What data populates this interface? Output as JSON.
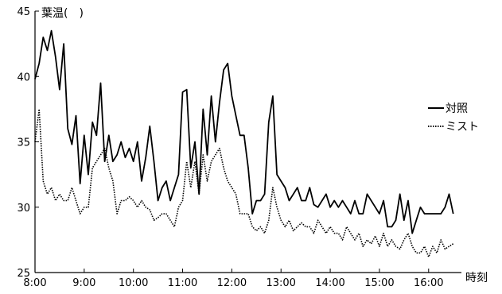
{
  "chart_data": {
    "type": "line",
    "ylabel": "葉温(　)",
    "xlabel": "時刻",
    "ylim": [
      25,
      45
    ],
    "yticks": [
      25,
      30,
      35,
      40,
      45
    ],
    "xlim": [
      "8:00",
      "16:40"
    ],
    "xticks": [
      "8:00",
      "9:00",
      "10:00",
      "11:00",
      "12:00",
      "13:00",
      "14:00",
      "15:00",
      "16:00"
    ],
    "grid": false,
    "legend": "right",
    "series": [
      {
        "name": "対照",
        "style": "solid",
        "color": "#000000",
        "x": [
          "8:00",
          "8:05",
          "8:10",
          "8:15",
          "8:20",
          "8:25",
          "8:30",
          "8:35",
          "8:40",
          "8:45",
          "8:50",
          "8:55",
          "9:00",
          "9:05",
          "9:10",
          "9:15",
          "9:20",
          "9:25",
          "9:30",
          "9:35",
          "9:40",
          "9:45",
          "9:50",
          "9:55",
          "10:00",
          "10:05",
          "10:10",
          "10:15",
          "10:20",
          "10:25",
          "10:30",
          "10:35",
          "10:40",
          "10:45",
          "10:50",
          "10:55",
          "11:00",
          "11:05",
          "11:10",
          "11:15",
          "11:20",
          "11:25",
          "11:30",
          "11:35",
          "11:40",
          "11:45",
          "11:50",
          "11:55",
          "12:00",
          "12:05",
          "12:10",
          "12:15",
          "12:20",
          "12:25",
          "12:30",
          "12:35",
          "12:40",
          "12:45",
          "12:50",
          "12:55",
          "13:00",
          "13:05",
          "13:10",
          "13:15",
          "13:20",
          "13:25",
          "13:30",
          "13:35",
          "13:40",
          "13:45",
          "13:50",
          "13:55",
          "14:00",
          "14:05",
          "14:10",
          "14:15",
          "14:20",
          "14:25",
          "14:30",
          "14:35",
          "14:40",
          "14:45",
          "14:50",
          "14:55",
          "15:00",
          "15:05",
          "15:10",
          "15:15",
          "15:20",
          "15:25",
          "15:30",
          "15:35",
          "15:40",
          "15:45",
          "15:50",
          "15:55",
          "16:00",
          "16:05",
          "16:10",
          "16:15",
          "16:20",
          "16:25",
          "16:30"
        ],
        "values": [
          39.8,
          41.0,
          43.0,
          42.0,
          43.5,
          41.5,
          39.0,
          42.5,
          36.0,
          34.8,
          37.0,
          31.8,
          35.5,
          32.5,
          36.5,
          35.5,
          39.5,
          33.5,
          35.5,
          33.5,
          34.0,
          35.0,
          33.8,
          34.5,
          33.5,
          35.0,
          32.0,
          33.8,
          36.2,
          33.5,
          30.5,
          31.5,
          32.0,
          30.5,
          31.5,
          32.5,
          38.8,
          39.0,
          33.0,
          35.0,
          31.0,
          37.5,
          34.0,
          38.5,
          35.0,
          38.0,
          40.5,
          41.0,
          38.5,
          37.0,
          35.5,
          35.5,
          33.0,
          29.5,
          30.5,
          30.5,
          31.0,
          36.5,
          38.5,
          32.5,
          32.0,
          31.5,
          30.5,
          31.0,
          31.5,
          30.5,
          30.5,
          31.5,
          30.2,
          30.0,
          30.5,
          31.0,
          30.0,
          30.5,
          30.0,
          30.5,
          30.0,
          29.5,
          30.5,
          29.5,
          29.5,
          31.0,
          30.5,
          30.0,
          29.5,
          30.5,
          28.5,
          28.5,
          29.0,
          31.0,
          29.0,
          30.5,
          28.0,
          29.0,
          30.0,
          29.5,
          29.5,
          29.5,
          29.5,
          29.5,
          30.0,
          31.0,
          29.5
        ]
      },
      {
        "name": "ミスト",
        "style": "dotted",
        "color": "#000000",
        "x": [
          "8:00",
          "8:05",
          "8:10",
          "8:15",
          "8:20",
          "8:25",
          "8:30",
          "8:35",
          "8:40",
          "8:45",
          "8:50",
          "8:55",
          "9:00",
          "9:05",
          "9:10",
          "9:15",
          "9:20",
          "9:25",
          "9:30",
          "9:35",
          "9:40",
          "9:45",
          "9:50",
          "9:55",
          "10:00",
          "10:05",
          "10:10",
          "10:15",
          "10:20",
          "10:25",
          "10:30",
          "10:35",
          "10:40",
          "10:45",
          "10:50",
          "10:55",
          "11:00",
          "11:05",
          "11:10",
          "11:15",
          "11:20",
          "11:25",
          "11:30",
          "11:35",
          "11:40",
          "11:45",
          "11:50",
          "11:55",
          "12:00",
          "12:05",
          "12:10",
          "12:15",
          "12:20",
          "12:25",
          "12:30",
          "12:35",
          "12:40",
          "12:45",
          "12:50",
          "12:55",
          "13:00",
          "13:05",
          "13:10",
          "13:15",
          "13:20",
          "13:25",
          "13:30",
          "13:35",
          "13:40",
          "13:45",
          "13:50",
          "13:55",
          "14:00",
          "14:05",
          "14:10",
          "14:15",
          "14:20",
          "14:25",
          "14:30",
          "14:35",
          "14:40",
          "14:45",
          "14:50",
          "14:55",
          "15:00",
          "15:05",
          "15:10",
          "15:15",
          "15:20",
          "15:25",
          "15:30",
          "15:35",
          "15:40",
          "15:45",
          "15:50",
          "15:55",
          "16:00",
          "16:05",
          "16:10",
          "16:15",
          "16:20",
          "16:25",
          "16:30"
        ],
        "values": [
          35.0,
          37.5,
          32.0,
          31.0,
          31.5,
          30.5,
          31.0,
          30.5,
          30.5,
          31.5,
          30.5,
          29.5,
          30.0,
          30.0,
          33.0,
          33.5,
          34.0,
          34.5,
          33.0,
          32.0,
          29.5,
          30.5,
          30.5,
          30.8,
          30.5,
          30.0,
          30.5,
          30.0,
          29.8,
          29.0,
          29.2,
          29.5,
          29.5,
          29.0,
          28.5,
          30.0,
          30.5,
          33.5,
          31.5,
          33.5,
          31.0,
          34.0,
          32.0,
          33.5,
          34.0,
          34.5,
          33.0,
          32.0,
          31.5,
          31.0,
          29.5,
          29.5,
          29.5,
          28.5,
          28.2,
          28.5,
          28.0,
          29.0,
          31.5,
          30.0,
          29.0,
          28.5,
          29.0,
          28.2,
          28.5,
          28.8,
          28.5,
          28.5,
          28.0,
          29.0,
          28.5,
          28.0,
          28.5,
          28.0,
          28.0,
          27.5,
          28.5,
          28.0,
          27.5,
          28.0,
          27.0,
          27.5,
          27.2,
          27.8,
          27.0,
          28.0,
          27.0,
          27.5,
          27.0,
          26.8,
          27.5,
          28.0,
          27.0,
          26.5,
          26.5,
          27.0,
          26.2,
          27.0,
          26.5,
          27.5,
          26.8,
          27.0,
          27.2
        ]
      }
    ]
  }
}
